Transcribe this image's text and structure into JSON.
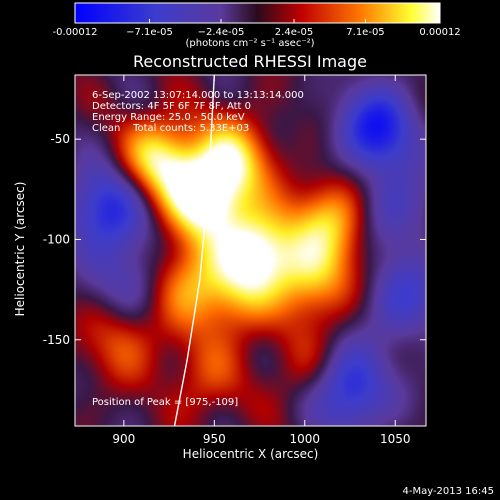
{
  "chart_data": {
    "type": "heatmap",
    "title": "Reconstructed RHESSI Image",
    "xlabel": "Heliocentric X (arcsec)",
    "ylabel": "Heliocentric Y (arcsec)",
    "xlim": [
      873,
      1067
    ],
    "ylim": [
      -193,
      -18
    ],
    "x_ticks": [
      900,
      950,
      1000,
      1050
    ],
    "x_tick_labels": [
      "900",
      "950",
      "1000",
      "1050"
    ],
    "y_ticks": [
      -50,
      -100,
      -150
    ],
    "y_tick_labels": [
      "-50",
      "-100",
      "-150"
    ],
    "colorbar": {
      "title": "(photons cm⁻² s⁻¹ asec⁻²)",
      "ticks": [
        -0.00012,
        -7.1e-05,
        -2.4e-05,
        2.4e-05,
        7.1e-05,
        0.00012
      ],
      "tick_labels": [
        "-0.00012",
        "−7.1e-05",
        "−2.4e-05",
        "2.4e-05",
        "7.1e-05",
        "0.00012"
      ],
      "colormap": "blue-purple-red-yellow-white",
      "range": [
        -0.00012,
        0.00012
      ]
    },
    "annotations": [
      "6-Sep-2002 13:07:14.000 to 13:13:14.000",
      "Detectors: 4F 5F 6F 7F 8F, Att 0",
      "Energy Range: 25.0 - 50.0 keV",
      "Clean    Total counts: 5.33E+03",
      "Position of Peak = [975,-109]"
    ],
    "peak_position": [
      975,
      -109
    ],
    "sources": [
      {
        "x": 945,
        "y": -80,
        "intensity": 0.00012
      },
      {
        "x": 975,
        "y": -105,
        "intensity": 0.00012
      },
      {
        "x": 920,
        "y": -60,
        "intensity": 0.0001
      },
      {
        "x": 960,
        "y": -60,
        "intensity": 9e-05
      },
      {
        "x": 1015,
        "y": -90,
        "intensity": 8e-05
      },
      {
        "x": 1005,
        "y": -120,
        "intensity": 8e-05
      },
      {
        "x": 935,
        "y": -120,
        "intensity": 7e-05
      },
      {
        "x": 960,
        "y": -130,
        "intensity": 6e-05
      },
      {
        "x": 900,
        "y": -150,
        "intensity": 5e-05
      },
      {
        "x": 945,
        "y": -170,
        "intensity": 4e-05
      },
      {
        "x": 1000,
        "y": -165,
        "intensity": 3e-05
      },
      {
        "x": 890,
        "y": -85,
        "intensity": -9e-05
      },
      {
        "x": 1040,
        "y": -45,
        "intensity": -0.0001
      },
      {
        "x": 1025,
        "y": -175,
        "intensity": -9e-05
      },
      {
        "x": 1055,
        "y": -130,
        "intensity": -6e-05
      },
      {
        "x": 905,
        "y": -120,
        "intensity": -5e-05
      },
      {
        "x": 1050,
        "y": -85,
        "intensity": -5e-05
      }
    ],
    "limb_curve": [
      [
        950,
        -18
      ],
      [
        947,
        -70
      ],
      [
        942,
        -120
      ],
      [
        935,
        -160
      ],
      [
        928,
        -193
      ]
    ]
  },
  "footer": "4-May-2013 16:45"
}
